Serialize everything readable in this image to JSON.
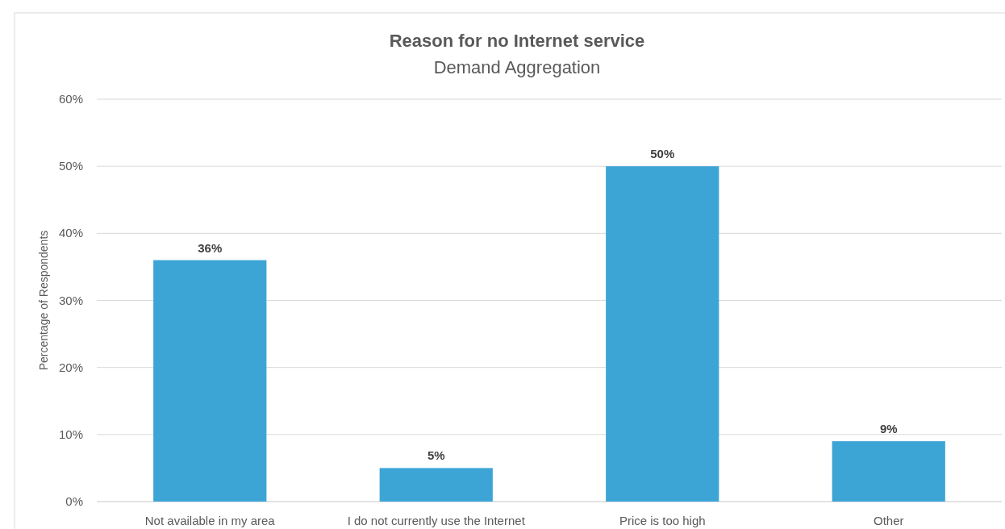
{
  "chart_data": {
    "type": "bar",
    "title": "Reason for no Internet service",
    "subtitle": "Demand Aggregation",
    "ylabel": "Percentage of Respondents",
    "categories": [
      "Not available in my area",
      "I do not currently use the Internet",
      "Price is too high",
      "Other"
    ],
    "values": [
      36,
      5,
      50,
      9
    ],
    "color": "#3da5d6",
    "value_labels": [
      "36%",
      "5%",
      "50%",
      "9%"
    ],
    "ylim": [
      0,
      60
    ],
    "yticks": [
      {
        "value": 0,
        "label": "0%"
      },
      {
        "value": 10,
        "label": "10%"
      },
      {
        "value": 20,
        "label": "20%"
      },
      {
        "value": 30,
        "label": "30%"
      },
      {
        "value": 40,
        "label": "40%"
      },
      {
        "value": 50,
        "label": "50%"
      },
      {
        "value": 60,
        "label": "60%"
      }
    ],
    "grid": "y"
  }
}
